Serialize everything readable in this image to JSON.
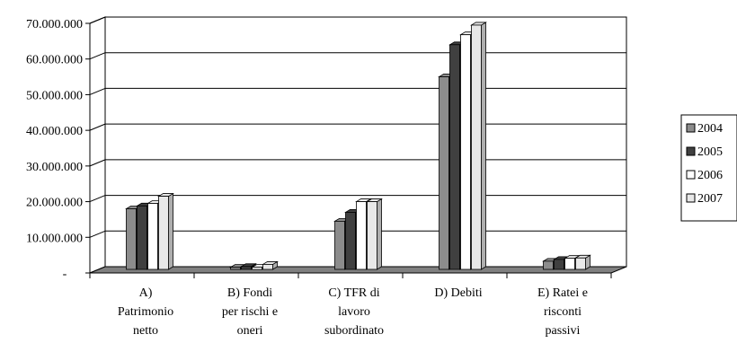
{
  "chart_data": {
    "type": "bar",
    "style": "3d-clustered",
    "categories": [
      [
        "A)",
        "Patrimonio",
        "netto"
      ],
      [
        "B) Fondi",
        "per rischi e",
        "oneri"
      ],
      [
        "C) TFR di",
        "lavoro",
        "subordinato"
      ],
      [
        "D) Debiti"
      ],
      [
        "E) Ratei e",
        "risconti",
        "passivi"
      ]
    ],
    "series": [
      {
        "name": "2004",
        "color": "#8c8c8c",
        "values": [
          17000000,
          600000,
          13500000,
          54000000,
          2300000
        ]
      },
      {
        "name": "2005",
        "color": "#404040",
        "values": [
          17800000,
          800000,
          16000000,
          63000000,
          2800000
        ]
      },
      {
        "name": "2006",
        "color": "#ffffff",
        "values": [
          18500000,
          600000,
          19000000,
          65800000,
          3100000
        ]
      },
      {
        "name": "2007",
        "color": "#e8e8e8",
        "values": [
          20500000,
          1400000,
          19000000,
          68500000,
          3200000
        ]
      }
    ],
    "y_ticks": [
      {
        "value": 0,
        "label": "-"
      },
      {
        "value": 10000000,
        "label": "10.000.000"
      },
      {
        "value": 20000000,
        "label": "20.000.000"
      },
      {
        "value": 30000000,
        "label": "30.000.000"
      },
      {
        "value": 40000000,
        "label": "40.000.000"
      },
      {
        "value": 50000000,
        "label": "50.000.000"
      },
      {
        "value": 60000000,
        "label": "60.000.000"
      },
      {
        "value": 70000000,
        "label": "70.000.000"
      }
    ],
    "ylim": [
      0,
      70000000
    ],
    "grid": true,
    "legend": "right",
    "colors": {
      "wall": "#ffffff",
      "floor": "#808080",
      "grid": "#000000"
    }
  }
}
